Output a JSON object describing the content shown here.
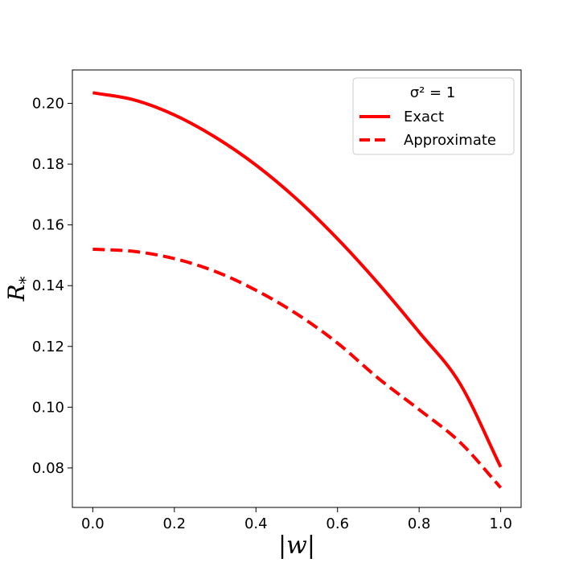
{
  "chart_data": {
    "type": "line",
    "xlabel": "|w|",
    "ylabel": "R*",
    "xlim": [
      -0.05,
      1.05
    ],
    "ylim": [
      0.067,
      0.211
    ],
    "xticks": [
      0.0,
      0.2,
      0.4,
      0.6,
      0.8,
      1.0
    ],
    "xtick_labels": [
      "0.0",
      "0.2",
      "0.4",
      "0.6",
      "0.8",
      "1.0"
    ],
    "yticks": [
      0.08,
      0.1,
      0.12,
      0.14,
      0.16,
      0.18,
      0.2
    ],
    "ytick_labels": [
      "0.08",
      "0.10",
      "0.12",
      "0.14",
      "0.16",
      "0.18",
      "0.20"
    ],
    "grid": false,
    "legend": {
      "title": "σ² = 1",
      "placement": "upper-right",
      "entries": [
        "Exact",
        "Approximate"
      ]
    },
    "x": [
      0.0,
      0.1,
      0.2,
      0.3,
      0.4,
      0.5,
      0.6,
      0.7,
      0.8,
      0.9,
      1.0
    ],
    "series": [
      {
        "name": "Exact",
        "style": "solid",
        "color": "#ff0000",
        "values": [
          0.2035,
          0.2012,
          0.1962,
          0.1889,
          0.1797,
          0.1685,
          0.1554,
          0.1407,
          0.1247,
          0.1078,
          0.0803
        ]
      },
      {
        "name": "Approximate",
        "style": "dashed",
        "color": "#ff0000",
        "values": [
          0.152,
          0.1513,
          0.1489,
          0.1447,
          0.1385,
          0.1307,
          0.1211,
          0.1095,
          0.0992,
          0.0885,
          0.0735
        ]
      }
    ]
  }
}
